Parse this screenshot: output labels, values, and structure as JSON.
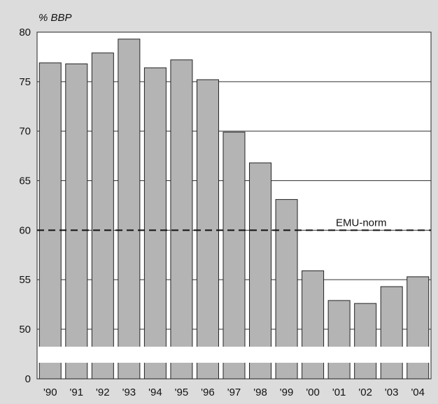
{
  "chart_data": {
    "type": "bar",
    "unit_label": "% BBP",
    "categories": [
      "'90",
      "'91",
      "'92",
      "'93",
      "'94",
      "'95",
      "'96",
      "'97",
      "'98",
      "'99",
      "'00",
      "'01",
      "'02",
      "'03",
      "'04"
    ],
    "values": [
      76.9,
      76.8,
      77.9,
      79.3,
      76.4,
      77.2,
      75.2,
      69.9,
      66.8,
      63.1,
      55.9,
      52.9,
      52.6,
      54.3,
      55.3
    ],
    "y_ticks": [
      "80",
      "75",
      "70",
      "65",
      "60",
      "55",
      "50",
      "0"
    ],
    "y_tick_values": [
      80,
      75,
      70,
      65,
      60,
      55,
      50,
      0
    ],
    "ylim": [
      0,
      80
    ],
    "axis_break": true,
    "grid": true,
    "reference_line": {
      "value": 60,
      "label": "EMU-norm",
      "style": "dashed"
    },
    "colors": {
      "bar": "#b4b4b4",
      "bar_stroke": "#222222",
      "plot_bg": "#ffffff",
      "page_bg": "#dcdcdc"
    }
  }
}
